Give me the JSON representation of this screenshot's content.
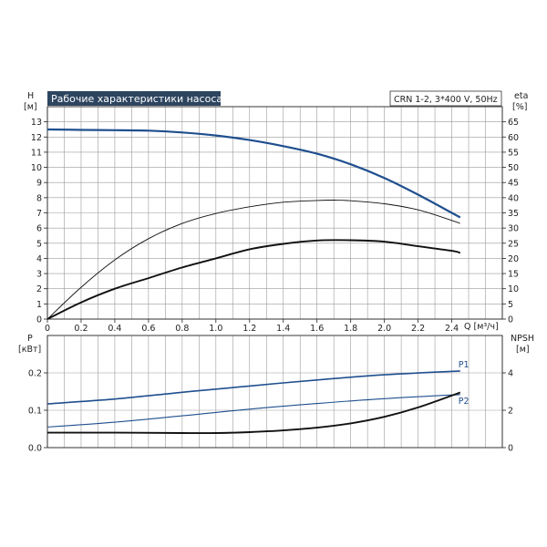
{
  "chart_data": [
    {
      "type": "line",
      "title": "Рабочие характеристики насоса",
      "model_label": "CRN 1-2, 3*400 V, 50Hz",
      "xlabel": "Q [м³/ч]",
      "ylabel_left": "H",
      "ylabel_left_unit": "[м]",
      "ylabel_right": "eta",
      "ylabel_right_unit": "[%]",
      "xlim": [
        0,
        2.7
      ],
      "ylim_left": [
        0,
        14
      ],
      "ylim_right": [
        0,
        70
      ],
      "x_ticks": [
        "0",
        "0.2",
        "0.4",
        "0.6",
        "0.8",
        "1.0",
        "1.2",
        "1.4",
        "1.6",
        "1.8",
        "2.0",
        "2.2",
        "2.4"
      ],
      "y_left_ticks": [
        "0",
        "1",
        "2",
        "3",
        "4",
        "5",
        "6",
        "7",
        "8",
        "9",
        "10",
        "11",
        "12",
        "13"
      ],
      "y_right_ticks": [
        "0",
        "5",
        "10",
        "15",
        "20",
        "25",
        "30",
        "35",
        "40",
        "45",
        "50",
        "55",
        "60",
        "65"
      ],
      "grid": true,
      "series": [
        {
          "axis": "left",
          "color": "#1f4f8f",
          "x": [
            0,
            0.2,
            0.4,
            0.6,
            0.8,
            1.0,
            1.2,
            1.4,
            1.6,
            1.8,
            2.0,
            2.2,
            2.4,
            2.45
          ],
          "y": [
            12.5,
            12.47,
            12.45,
            12.42,
            12.3,
            12.1,
            11.8,
            11.4,
            10.9,
            10.2,
            9.3,
            8.2,
            7.0,
            6.7
          ]
        },
        {
          "axis": "right",
          "color": "#111111",
          "x": [
            0,
            0.2,
            0.4,
            0.6,
            0.8,
            1.0,
            1.2,
            1.4,
            1.6,
            1.7,
            1.8,
            2.0,
            2.2,
            2.4,
            2.45
          ],
          "y": [
            0,
            10.5,
            19.5,
            26.5,
            31.5,
            34.8,
            37.0,
            38.5,
            39.1,
            39.2,
            39.0,
            38.0,
            36.0,
            32.5,
            31.5
          ]
        },
        {
          "axis": "right",
          "color": "#111111",
          "x": [
            0,
            0.2,
            0.4,
            0.6,
            0.8,
            1.0,
            1.2,
            1.4,
            1.6,
            1.8,
            2.0,
            2.2,
            2.4,
            2.45
          ],
          "y": [
            0,
            5.5,
            10.0,
            13.5,
            17.0,
            20.0,
            23.0,
            24.8,
            25.9,
            26.0,
            25.5,
            24.0,
            22.5,
            21.8
          ]
        }
      ]
    },
    {
      "type": "line",
      "xlim": [
        0,
        2.7
      ],
      "ylabel_left": "P",
      "ylabel_left_unit": "[кВт]",
      "ylabel_right": "NPSH",
      "ylabel_right_unit": "[м]",
      "ylim_left": [
        0,
        0.3
      ],
      "ylim_right": [
        0,
        6
      ],
      "y_left_ticks": [
        "0.0",
        "0.1",
        "0.2"
      ],
      "y_right_ticks": [
        "0",
        "2",
        "4"
      ],
      "grid": true,
      "series": [
        {
          "name": "P1",
          "axis": "left",
          "color": "#1f4f8f",
          "x": [
            0,
            0.4,
            0.8,
            1.2,
            1.6,
            2.0,
            2.45
          ],
          "y": [
            0.117,
            0.13,
            0.148,
            0.165,
            0.181,
            0.195,
            0.205
          ]
        },
        {
          "name": "P2",
          "axis": "left",
          "color": "#1f4f8f",
          "x": [
            0,
            0.4,
            0.8,
            1.2,
            1.6,
            2.0,
            2.45
          ],
          "y": [
            0.055,
            0.068,
            0.085,
            0.103,
            0.118,
            0.131,
            0.142
          ]
        },
        {
          "axis": "right",
          "color": "#111111",
          "x": [
            0,
            0.4,
            0.8,
            1.0,
            1.2,
            1.4,
            1.6,
            1.8,
            2.0,
            2.2,
            2.45
          ],
          "y": [
            0.8,
            0.8,
            0.78,
            0.78,
            0.83,
            0.92,
            1.07,
            1.3,
            1.65,
            2.15,
            2.95
          ]
        }
      ]
    }
  ]
}
